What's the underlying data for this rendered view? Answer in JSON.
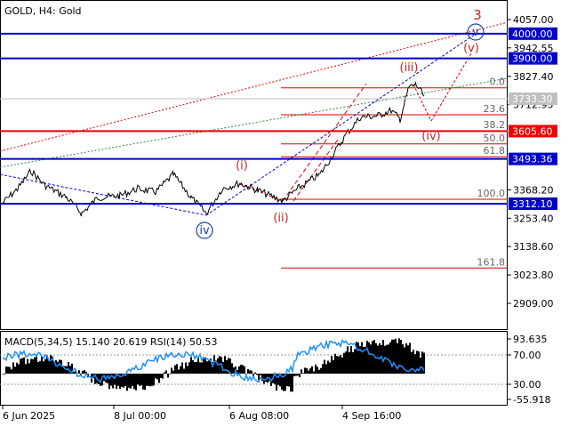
{
  "header": {
    "title": "GOLD, H4:  Gold"
  },
  "price_axis": {
    "ticks": [
      "4057.00",
      "3942.55",
      "3827.40",
      "3712.95",
      "3368.20",
      "3253.40",
      "3138.60",
      "3023.80",
      "2909.00"
    ],
    "tick_values": [
      4057.0,
      3942.55,
      3827.4,
      3712.95,
      3368.2,
      3253.4,
      3138.6,
      3023.8,
      2909.0
    ],
    "current_price": "3733.30"
  },
  "levels": [
    {
      "label": "4000.00",
      "value": 4000.0,
      "color": "#0000cc",
      "tag_bg": "#0000cc"
    },
    {
      "label": "3900.00",
      "value": 3900.0,
      "color": "#0000cc",
      "tag_bg": "#0000cc"
    },
    {
      "label": "3605.60",
      "value": 3605.6,
      "color": "#ee0000",
      "tag_bg": "#ee0000"
    },
    {
      "label": "3493.36",
      "value": 3493.36,
      "color": "#0000cc",
      "tag_bg": "#0000cc"
    },
    {
      "label": "3312.10",
      "value": 3312.1,
      "color": "#0000cc",
      "tag_bg": "#0000cc"
    }
  ],
  "fibonacci": {
    "color": "#dd0000",
    "levels": [
      {
        "label": "0.0",
        "value": 3781
      },
      {
        "label": "23.6",
        "value": 3672
      },
      {
        "label": "38.2",
        "value": 3607
      },
      {
        "label": "50.0",
        "value": 3554
      },
      {
        "label": "61.8",
        "value": 3502
      },
      {
        "label": "100.0",
        "value": 3330
      },
      {
        "label": "161.8",
        "value": 3052
      }
    ]
  },
  "wave_labels": [
    {
      "text": "3",
      "color": "#cc2222",
      "style": "plain"
    },
    {
      "text": "v",
      "color": "#1a3fa8",
      "style": "circle"
    },
    {
      "text": "(v)",
      "color": "#cc2222",
      "style": "plain"
    },
    {
      "text": "(iii)",
      "color": "#cc2222",
      "style": "plain"
    },
    {
      "text": "(iv)",
      "color": "#cc2222",
      "style": "plain"
    },
    {
      "text": "(i)",
      "color": "#cc2222",
      "style": "plain"
    },
    {
      "text": "(ii)",
      "color": "#cc2222",
      "style": "plain"
    },
    {
      "text": "iv",
      "color": "#1a3fa8",
      "style": "circle"
    }
  ],
  "indicator": {
    "title": "MACD(5,34,5) 15.140 20.619 RSI(14) 50.53",
    "ticks": [
      "93.635",
      "70.00",
      "30.00",
      "-55.918"
    ],
    "rsi_color": "#1e90ff",
    "hist_color": "#000000"
  },
  "time_axis": {
    "labels": [
      "6 Jun 2025",
      "8 Jul 00:00",
      "6 Aug 08:00",
      "4 Sep 16:00"
    ]
  },
  "colors": {
    "candles": "#000000",
    "grid": "#c8c8c8",
    "trend_red": "#dd0000",
    "trend_green": "#2e8b3e",
    "trend_blue": "#0000cc"
  }
}
